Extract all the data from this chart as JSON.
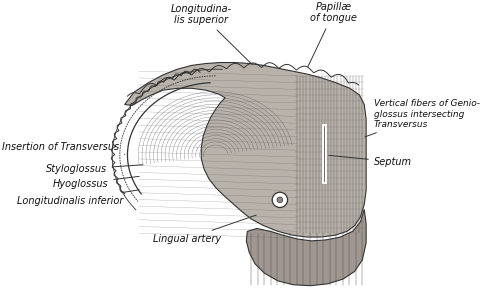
{
  "bg_color": "#ffffff",
  "tongue_fill": "#c8c0b8",
  "tongue_dark": "#888078",
  "bottom_fill": "#b0a898",
  "line_color": "#333333",
  "text_color": "#111111",
  "label_fontsize": 7.0,
  "annotation_fontsize": 7.0,
  "labels": {
    "longitudinalis_superior": "Longitudina-\nlis superior",
    "papillae": "Papillæ\nof tongue",
    "vertical_fibers": "Vertical fibers of Genio-\nglossus intersecting\nTransversus",
    "septum": "Septum",
    "insertion": "Insertion of Transversus",
    "styloglossus": "Styloglossus",
    "hyoglossus": "Hyoglossus",
    "longitudinalis_inferior": "Longitudinalis inferior",
    "lingual_artery": "Lingual artery"
  }
}
